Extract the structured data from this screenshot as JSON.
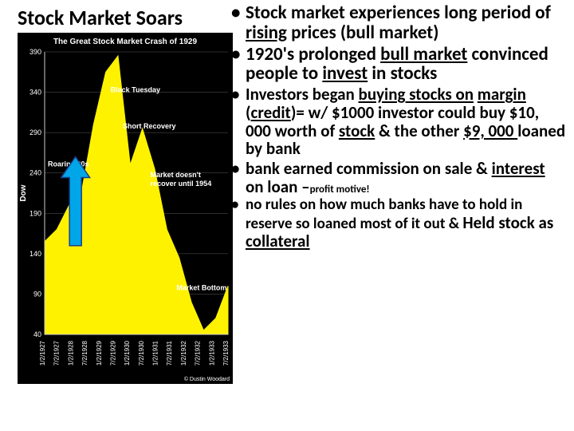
{
  "title": "Stock Market Soars",
  "bullets": {
    "b0": "Stock market experiences long period of rising prices (bull market)",
    "b1": "1920's prolonged bull market convinced people to invest in stocks",
    "b2": "Investors began buying stocks on margin (credit)= w/ $1000 investor could buy $10, 000 worth of stock & the other $9, 000 loaned by bank",
    "b3": "bank earned commission on sale & interest on loan –",
    "b3_tail": "profit motive!",
    "b4": "no rules on how much banks have to hold in reserve so loaned most of it out &  Held stock as collateral"
  },
  "chart": {
    "type": "area",
    "title": "The Great Stock Market Crash of 1929",
    "title_color": "#ffffff",
    "title_fontsize": 10,
    "background_color": "#000000",
    "plot_bg": "#000000",
    "area_fill": "#fef200",
    "area_stroke": "#fef200",
    "grid_color": "#5a5a5a",
    "axis_color": "#cccccc",
    "text_color": "#ffffff",
    "annotation_color": "#ffffff",
    "arrow_fill": "#00a6e8",
    "arrow_stroke": "#1a3e8c",
    "ylabel": "Dow",
    "ylim": [
      40,
      390
    ],
    "yticks": [
      40,
      90,
      140,
      190,
      240,
      290,
      340,
      390
    ],
    "x_categories": [
      "1/2/1927",
      "7/2/1927",
      "1/2/1928",
      "7/2/1928",
      "1/2/1929",
      "7/2/1929",
      "1/2/1930",
      "7/2/1930",
      "1/2/1931",
      "7/2/1931",
      "1/2/1932",
      "7/2/1932",
      "1/2/1933",
      "7/2/1933"
    ],
    "series_y": [
      155,
      170,
      200,
      215,
      300,
      365,
      385,
      250,
      295,
      245,
      170,
      135,
      80,
      45,
      60,
      100
    ],
    "annotations": {
      "roaring": "Roaring 20s",
      "black_tuesday": "Black Tuesday",
      "short_recovery": "Short Recovery",
      "no_recover": "Market doesn't recover until 1954",
      "bottom": "Market Bottom"
    },
    "credit": "© Dustin Woodard"
  }
}
